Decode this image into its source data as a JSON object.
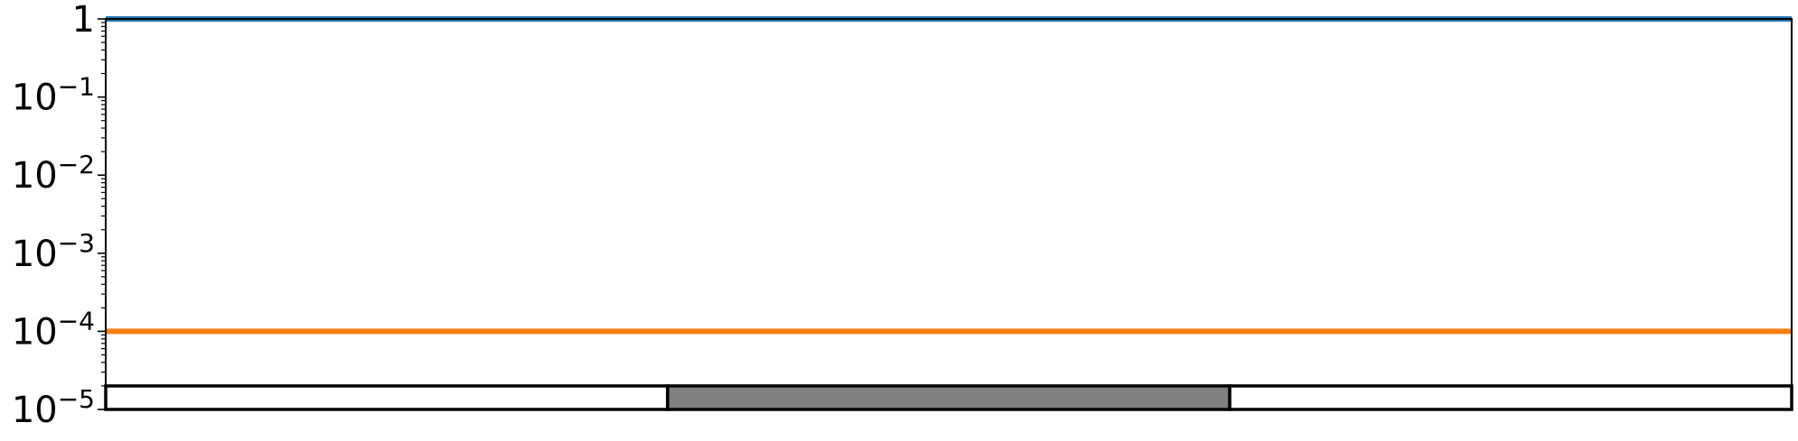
{
  "chart_data": {
    "type": "line",
    "x": [
      0,
      1
    ],
    "xlim": [
      0,
      1
    ],
    "ylim": [
      1e-05,
      1
    ],
    "yscale": "log",
    "grid": false,
    "xticks": [],
    "yticks": [
      {
        "value": 1,
        "base": "1",
        "exp": ""
      },
      {
        "value": 0.1,
        "base": "10",
        "exp": "−1"
      },
      {
        "value": 0.01,
        "base": "10",
        "exp": "−2"
      },
      {
        "value": 0.001,
        "base": "10",
        "exp": "−3"
      },
      {
        "value": 0.0001,
        "base": "10",
        "exp": "−4"
      },
      {
        "value": 1e-05,
        "base": "10",
        "exp": "−5"
      }
    ],
    "series": [
      {
        "color": "#1f77b4",
        "values": [
          1,
          1
        ]
      },
      {
        "color": "#ff7f0e",
        "values": [
          0.0001,
          0.0001
        ]
      }
    ],
    "band": {
      "ymin": 1e-05,
      "ymax": 2e-05,
      "segments": [
        {
          "x0": 0,
          "x1": 0.3333,
          "fill": "#ffffff"
        },
        {
          "x0": 0.3333,
          "x1": 0.6667,
          "fill": "#808080"
        },
        {
          "x0": 0.6667,
          "x1": 1,
          "fill": "#ffffff"
        }
      ]
    }
  }
}
